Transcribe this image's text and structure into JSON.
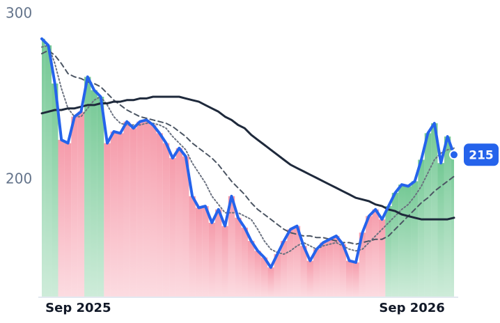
{
  "chart_data": {
    "type": "line",
    "categories": [
      null,
      null,
      null,
      null,
      null,
      null,
      "Sep 2025",
      null,
      null,
      null,
      null,
      null,
      null,
      null,
      null,
      null,
      null,
      null,
      null,
      null,
      null,
      null,
      null,
      null,
      null,
      null,
      null,
      null,
      null,
      null,
      null,
      null,
      null,
      null,
      null,
      null,
      null,
      null,
      null,
      null,
      null,
      null,
      null,
      null,
      null,
      null,
      null,
      null,
      null,
      null,
      null,
      null,
      null,
      null,
      null,
      null,
      null,
      "Sep 2026",
      null,
      null,
      null,
      null,
      null,
      null
    ],
    "series": [
      {
        "color": "#2563eb",
        "values": [
          285,
          281,
          258,
          224,
          222,
          238,
          241,
          262,
          254,
          250,
          222,
          229,
          228,
          235,
          231,
          235,
          236,
          233,
          228,
          222,
          213,
          219,
          214,
          190,
          183,
          184,
          174,
          182,
          172,
          190,
          177,
          171,
          163,
          157,
          153,
          147,
          155,
          163,
          170,
          172,
          160,
          151,
          158,
          162,
          164,
          166,
          161,
          151,
          150,
          168,
          178,
          182,
          176,
          184,
          192,
          197,
          196,
          199,
          212,
          228,
          234,
          210,
          226,
          215
        ]
      },
      {
        "color": "#1e293b",
        "values": [
          240,
          241,
          242,
          242,
          243,
          243,
          244,
          245,
          245,
          246,
          246,
          247,
          247,
          248,
          248,
          249,
          249,
          250,
          250,
          250,
          250,
          250,
          249,
          248,
          247,
          245,
          243,
          241,
          238,
          236,
          233,
          231,
          227,
          224,
          221,
          218,
          215,
          212,
          209,
          207,
          205,
          203,
          201,
          199,
          197,
          195,
          193,
          191,
          189,
          188,
          187,
          185,
          184,
          182,
          181,
          179,
          178,
          177,
          176,
          176,
          176,
          176,
          176,
          177
        ]
      },
      {
        "color": "#4b5563",
        "dash": "dashed",
        "values": [
          276,
          278,
          275,
          270,
          264,
          262,
          261,
          259,
          258,
          256,
          252,
          248,
          245,
          242,
          240,
          238,
          237,
          236,
          235,
          234,
          232,
          229,
          226,
          222,
          219,
          216,
          213,
          209,
          204,
          199,
          195,
          191,
          186,
          182,
          179,
          176,
          173,
          170,
          168,
          167,
          166,
          166,
          165,
          165,
          164,
          163,
          162,
          162,
          161,
          162,
          163,
          164,
          164,
          166,
          170,
          174,
          178,
          182,
          186,
          189,
          193,
          196,
          199,
          202
        ]
      },
      {
        "color": "#6b7280",
        "dash": "dotted",
        "values": [
          280,
          281,
          270,
          255,
          243,
          238,
          238,
          243,
          248,
          250,
          245,
          238,
          234,
          233,
          233,
          233,
          234,
          234,
          233,
          231,
          226,
          222,
          218,
          210,
          204,
          198,
          190,
          185,
          180,
          180,
          180,
          178,
          176,
          170,
          163,
          158,
          156,
          155,
          157,
          160,
          162,
          160,
          158,
          160,
          161,
          162,
          160,
          158,
          157,
          158,
          162,
          166,
          170,
          174,
          178,
          182,
          185,
          190,
          196,
          204,
          212,
          216,
          218,
          219
        ]
      }
    ],
    "up_color": "#5cbf82",
    "down_color": "#f48a9c",
    "ylim": [
      129,
      300
    ],
    "yticks": [
      200,
      300
    ]
  }
}
